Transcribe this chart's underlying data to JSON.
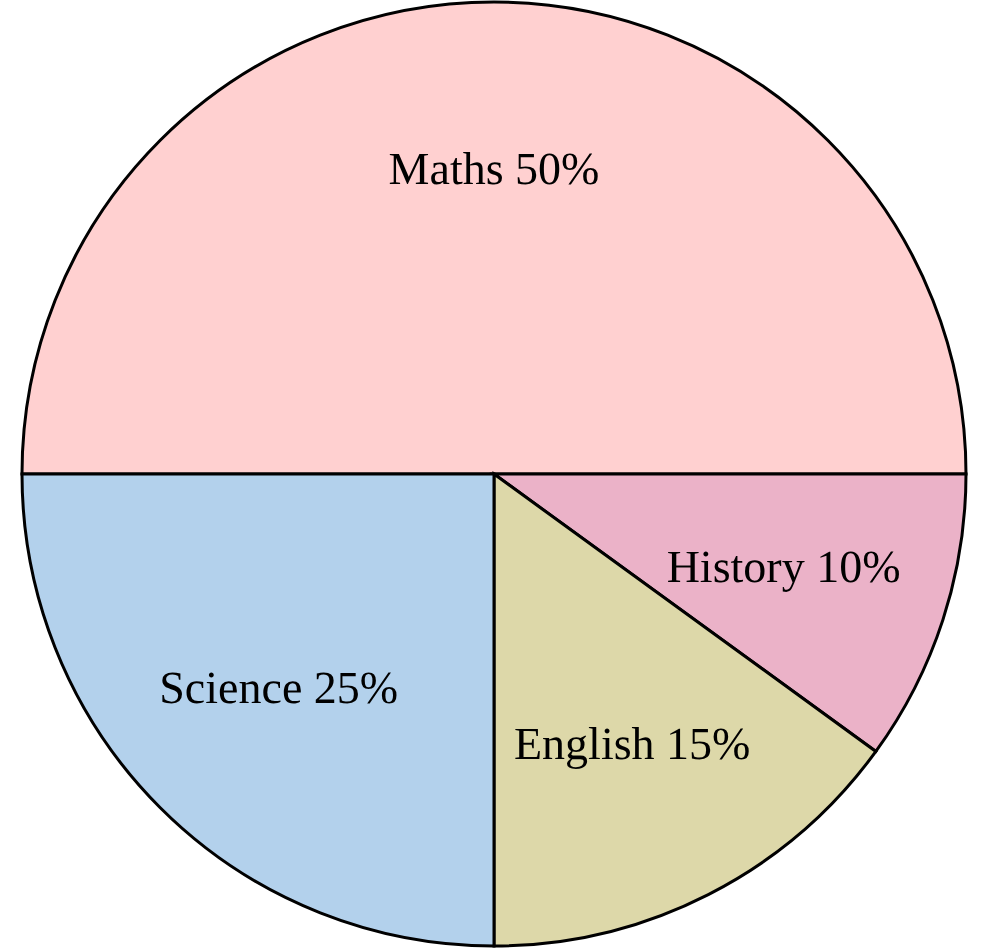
{
  "chart_data": {
    "type": "pie",
    "categories": [
      "Maths",
      "History",
      "English",
      "Science"
    ],
    "values": [
      50,
      10,
      15,
      25
    ],
    "value_labels": [
      "50%",
      "10%",
      "15%",
      "25%"
    ],
    "colors": [
      "#ffd0d0",
      "#ebb2c8",
      "#ddd8a9",
      "#b3d1ec"
    ]
  }
}
